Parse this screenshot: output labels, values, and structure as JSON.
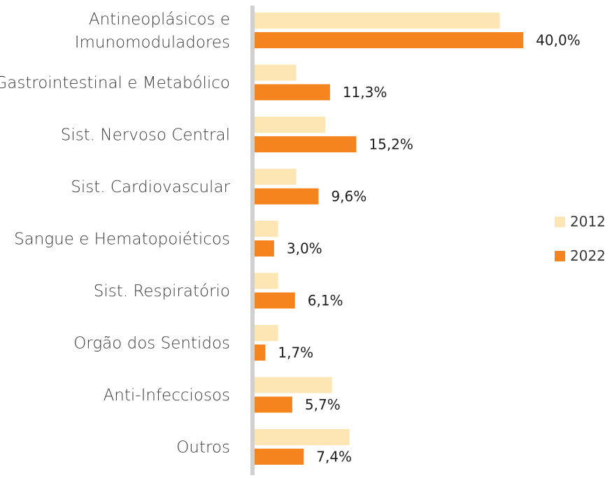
{
  "chart_data": {
    "type": "bar",
    "orientation": "horizontal",
    "categories": [
      [
        "Antineoplásicos e",
        "Imunomoduladores"
      ],
      [
        "Gastrointestinal e Metabólico"
      ],
      [
        "Sist. Nervoso Central"
      ],
      [
        "Sist. Cardiovascular"
      ],
      [
        "Sangue e Hematopoiéticos"
      ],
      [
        "Sist. Respiratório"
      ],
      [
        "Orgão dos Sentidos"
      ],
      [
        "Anti-Infecciosos"
      ],
      [
        "Outros"
      ]
    ],
    "series": [
      {
        "name": "2012",
        "color": "#fde5b4",
        "values": [
          36.5,
          6.3,
          10.6,
          6.3,
          3.6,
          3.6,
          3.6,
          11.6,
          14.2
        ]
      },
      {
        "name": "2022",
        "color": "#f5841f",
        "values": [
          40.0,
          11.3,
          15.2,
          9.6,
          3.0,
          6.1,
          1.7,
          5.7,
          7.4
        ],
        "labels": [
          "40,0%",
          "11,3%",
          "15,2%",
          "9,6%",
          "3,0%",
          "6,1%",
          "1,7%",
          "5,7%",
          "7,4%"
        ]
      }
    ],
    "xlim": [
      0,
      45
    ],
    "grid": false,
    "legend_position": "right",
    "axis_color": "#d0d0d0"
  }
}
